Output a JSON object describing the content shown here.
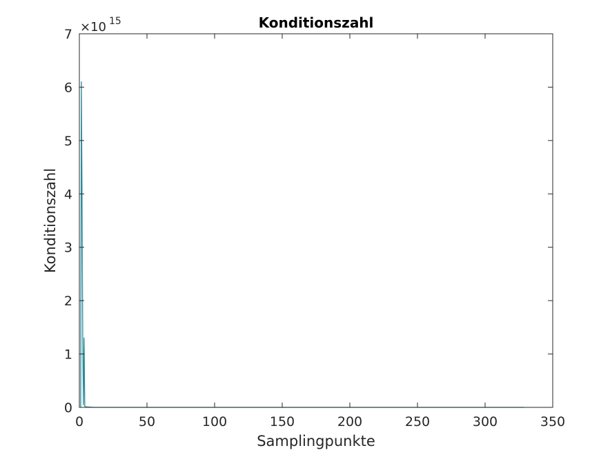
{
  "chart_data": {
    "type": "line",
    "title": "Konditionszahl",
    "xlabel": "Samplingpunkte",
    "ylabel": "Konditionszahl",
    "y_exponent_base": "×10",
    "y_exponent_power": "15",
    "xlim": [
      0,
      350
    ],
    "ylim": [
      0,
      7
    ],
    "xticks": [
      0,
      50,
      100,
      150,
      200,
      250,
      300,
      350
    ],
    "yticks": [
      0,
      1,
      2,
      3,
      4,
      5,
      6,
      7
    ],
    "grid": false,
    "series": [
      {
        "color": "#2a8a9a",
        "x": [
          1,
          1.5,
          2,
          2.5,
          3,
          3.5,
          4,
          5,
          10,
          50,
          100,
          150,
          200,
          250,
          300,
          329
        ],
        "y": [
          0,
          6.1,
          3.9,
          1.3,
          0.05,
          1.3,
          0.02,
          0.01,
          0.001,
          0.0001,
          0.0001,
          0.0001,
          0.0001,
          0.0001,
          0.0001,
          0.0001
        ]
      }
    ]
  }
}
